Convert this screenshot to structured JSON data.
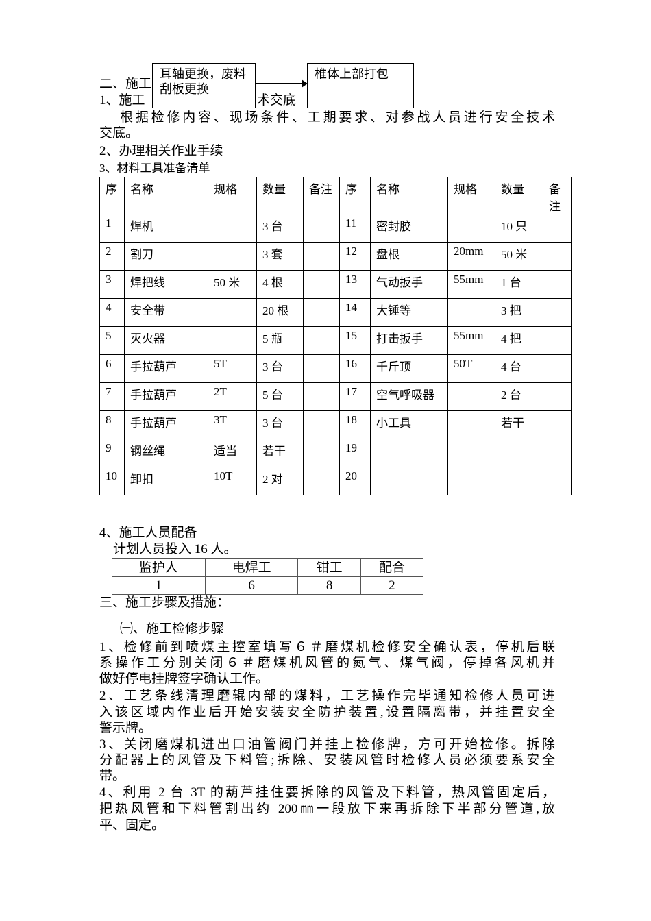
{
  "flow": {
    "box1": "耳轴更换，废料刮板更换",
    "box2": "椎体上部打包"
  },
  "lines": {
    "s2": "二、施工",
    "s2_1": "1、施工",
    "s2_1_tail": "术交底",
    "p1a": "根据检修内容、现场条件、工期要求、对参战人员进行安全技术",
    "p1b": "交底。",
    "s2_2": "2、办理相关作业手续",
    "s2_3": "3、材料工具准备清单",
    "s2_4": "4、施工人员配备",
    "plan": "计划人员投入 16 人。",
    "s3": "三、施工步骤及措施：",
    "s3_1": "㈠、施工检修步骤"
  },
  "materials": {
    "headers": [
      "序",
      "名称",
      "规格",
      "数量",
      "备注",
      "序",
      "名称",
      "规格",
      "数量",
      "备注"
    ],
    "rows": [
      [
        "1",
        "焊机",
        "",
        "3 台",
        "",
        "11",
        "密封胶",
        "",
        "10 只",
        ""
      ],
      [
        "2",
        "割刀",
        "",
        "3 套",
        "",
        "12",
        "盘根",
        "20mm",
        "50 米",
        ""
      ],
      [
        "3",
        "焊把线",
        "50 米",
        "4 根",
        "",
        "13",
        "气动扳手",
        "55mm",
        "1 台",
        ""
      ],
      [
        "4",
        "安全带",
        "",
        "20 根",
        "",
        "14",
        "大锤等",
        "",
        "3 把",
        ""
      ],
      [
        "5",
        "灭火器",
        "",
        "5 瓶",
        "",
        "15",
        "打击扳手",
        "55mm",
        "4 把",
        ""
      ],
      [
        "6",
        "手拉葫芦",
        "5T",
        "3 台",
        "",
        "16",
        "千斤顶",
        "50T",
        "4 台",
        ""
      ],
      [
        "7",
        "手拉葫芦",
        "2T",
        "5 台",
        "",
        "17",
        "空气呼吸器",
        "",
        "2 台",
        ""
      ],
      [
        "8",
        "手拉葫芦",
        "3T",
        "3 台",
        "",
        "18",
        "小工具",
        "",
        "若干",
        ""
      ],
      [
        "9",
        "钢丝绳",
        "适当",
        "若干",
        "",
        "19",
        "",
        "",
        "",
        ""
      ],
      [
        "10",
        "卸扣",
        "10T",
        "2 对",
        "",
        "20",
        "",
        "",
        "",
        ""
      ]
    ]
  },
  "crew": {
    "headers": [
      "监护人",
      "电焊工",
      "钳工",
      "配合"
    ],
    "values": [
      "1",
      "6",
      "8",
      "2"
    ]
  },
  "steps": [
    [
      "1、检修前到喷煤主控室填写６＃磨煤机检修安全确认表，停机后联",
      "系操作工分别关闭６＃磨煤机风管的氮气、煤气阀，停掉各风机并",
      "做好停电挂牌签字确认工作。"
    ],
    [
      "2、工艺条线清理磨辊内部的煤料，工艺操作完毕通知检修人员可进",
      "入该区域内作业后开始安装安全防护装置,设置隔离带，并挂置安全",
      "警示牌。"
    ],
    [
      "3、关闭磨煤机进出口油管阀门并挂上检修牌，方可开始检修。拆除",
      "分配器上的风管及下料管;拆除、安装风管时检修人员必须要系安全",
      "带。"
    ],
    [
      "4、利用 2 台 3T 的葫芦挂住要拆除的风管及下料管，热风管固定后，",
      "把热风管和下料管割出约 200㎜一段放下来再拆除下半部分管道,放",
      "平、固定。"
    ]
  ]
}
